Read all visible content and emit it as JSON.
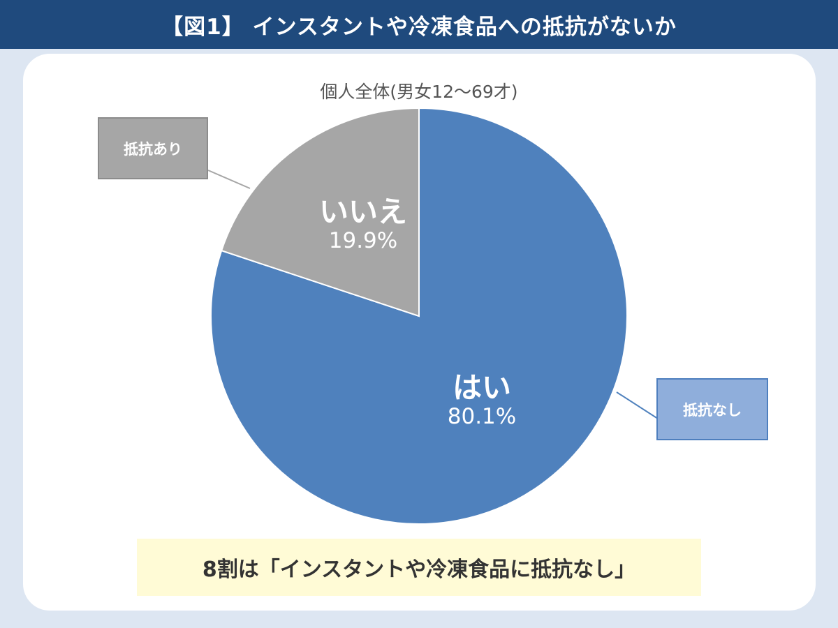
{
  "header": {
    "title": "【図1】 インスタントや冷凍食品への抵抗がないか"
  },
  "chart_data": {
    "type": "pie",
    "title": "個人全体(男女12〜69才)",
    "slices": [
      {
        "name": "はい",
        "value": 80.1,
        "label": "80.1%",
        "color": "#4f81bd",
        "callout": "抵抗なし"
      },
      {
        "name": "いいえ",
        "value": 19.9,
        "label": "19.9%",
        "color": "#a6a6a6",
        "callout": "抵抗あり"
      }
    ]
  },
  "conclusion": "8割は「インスタントや冷凍食品に抵抗なし」"
}
